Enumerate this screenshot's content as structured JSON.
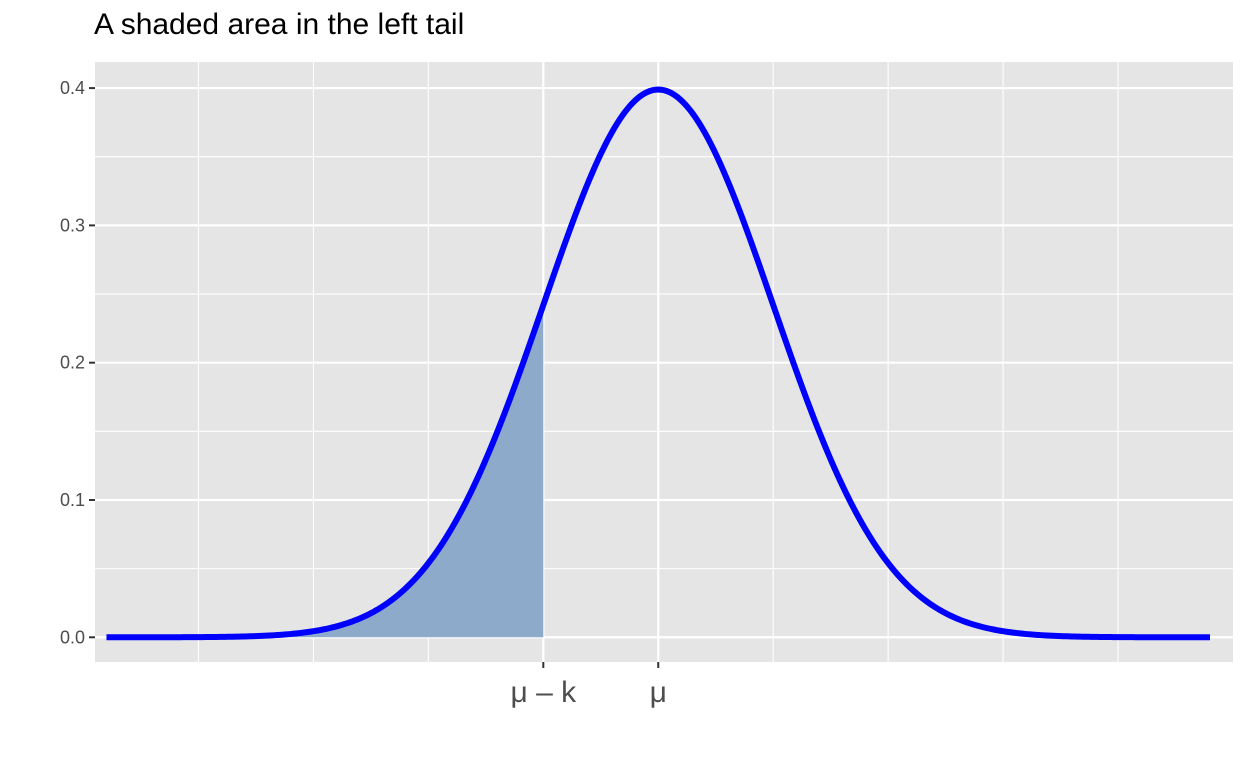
{
  "chart_data": {
    "type": "area",
    "title": "A shaded area in the left tail",
    "xlabel": "",
    "ylabel": "",
    "xlim": [
      -4.9,
      5.0
    ],
    "ylim": [
      -0.018,
      0.419
    ],
    "curve_range": [
      -4.8,
      4.8
    ],
    "distribution": "standard normal density",
    "shade_region": {
      "from": -4.8,
      "to": -1.0
    },
    "x_ticks": [
      {
        "value": -1.0,
        "label": "μ – k"
      },
      {
        "value": 0.0,
        "label": "μ"
      }
    ],
    "y_ticks": [
      {
        "value": 0.0,
        "label": "0.0"
      },
      {
        "value": 0.1,
        "label": "0.1"
      },
      {
        "value": 0.2,
        "label": "0.2"
      },
      {
        "value": 0.3,
        "label": "0.3"
      },
      {
        "value": 0.4,
        "label": "0.4"
      }
    ],
    "x_gridlines": [
      -4,
      -3,
      -2,
      -1,
      0,
      1,
      2,
      3,
      4
    ],
    "grid": true,
    "colors": {
      "curve": "#0000ff",
      "shade": "#8eaacb",
      "panel": "#e5e5e5",
      "grid": "#ffffff"
    }
  }
}
